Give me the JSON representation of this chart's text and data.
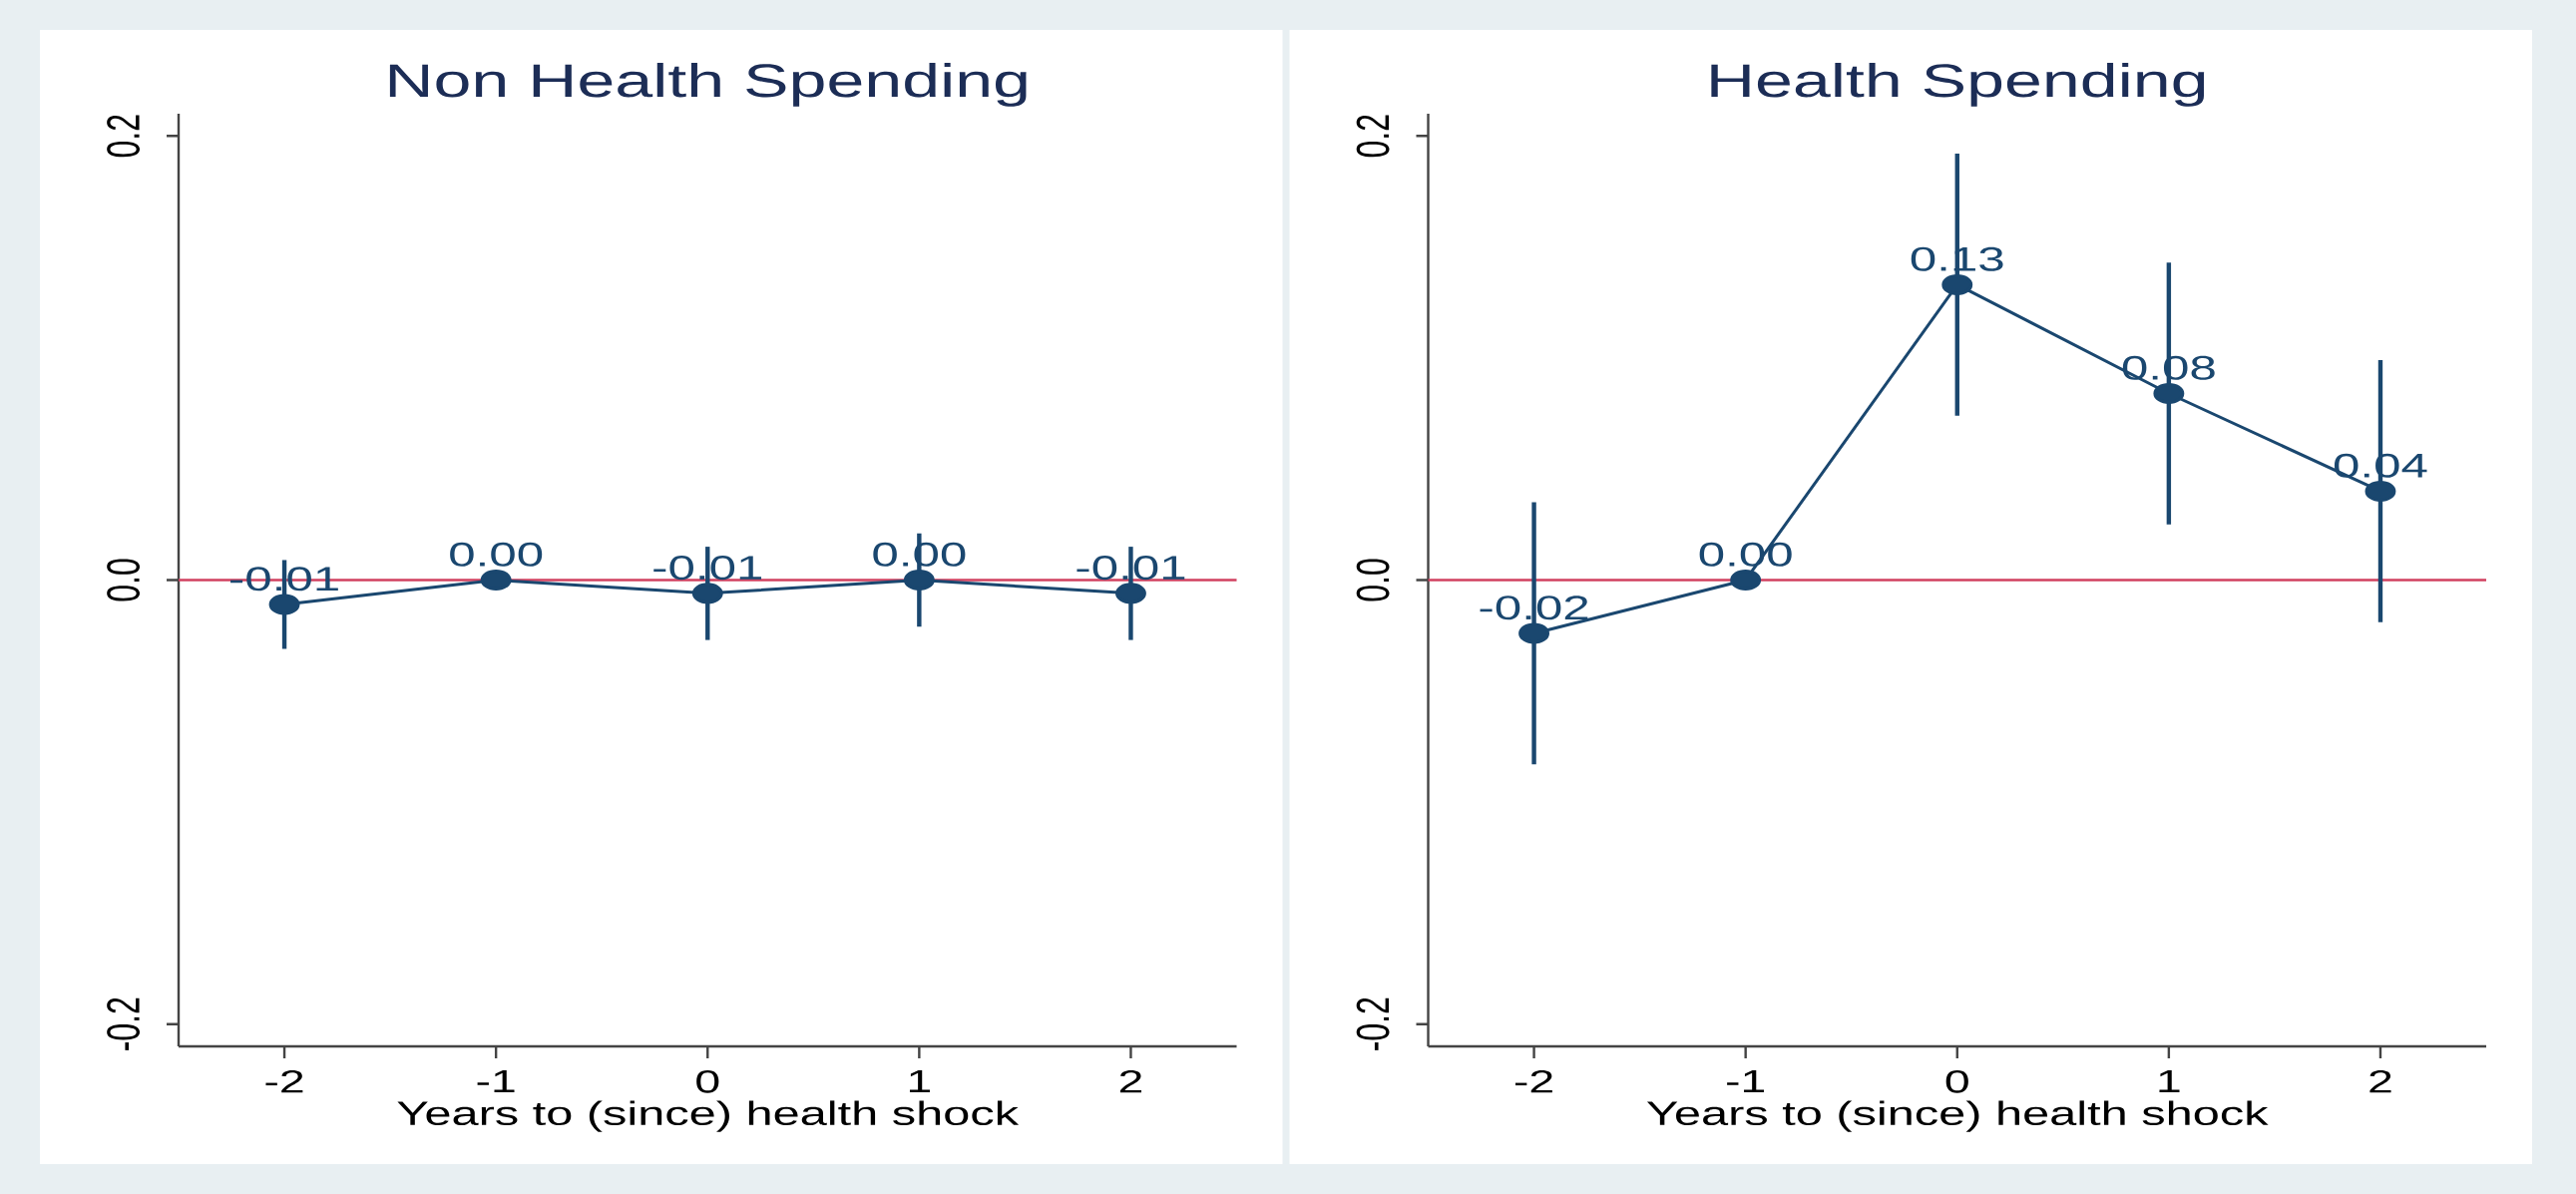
{
  "chart_data": [
    {
      "type": "line",
      "title": "Non Health Spending",
      "xlabel": "Years to (since) health shock",
      "x": [
        -2,
        -1,
        0,
        1,
        2
      ],
      "values": [
        -0.011,
        0,
        -0.006,
        0,
        -0.006
      ],
      "errors": [
        0.02,
        null,
        0.021,
        0.021,
        0.021
      ],
      "value_labels": [
        "-0.01",
        "0.00",
        "-0.01",
        "0.00",
        "-0.01"
      ],
      "color": "#1a476f",
      "marker": "circle",
      "line_style": "solid",
      "xlim": [
        -2.5,
        2.5
      ],
      "xticks": [
        -2,
        -1,
        0,
        1,
        2
      ],
      "ylim": [
        -0.21,
        0.21
      ],
      "yticks": [
        {
          "value": -0.2,
          "label": "-0.2"
        },
        {
          "value": 0,
          "label": "0.0"
        },
        {
          "value": 0.2,
          "label": "0.2"
        }
      ],
      "ref_lines": [
        {
          "axis": "y",
          "value": 0,
          "color": "#d0405f"
        }
      ]
    },
    {
      "type": "line",
      "title": "Health Spending",
      "xlabel": "Years to (since) health shock",
      "x": [
        -2,
        -1,
        0,
        1,
        2
      ],
      "values": [
        -0.024,
        0,
        0.133,
        0.084,
        0.04
      ],
      "errors": [
        0.059,
        null,
        0.059,
        0.059,
        0.059
      ],
      "value_labels": [
        "-0.02",
        "0.00",
        "0.13",
        "0.08",
        "0.04"
      ],
      "color": "#1a476f",
      "marker": "circle",
      "line_style": "solid",
      "xlim": [
        -2.5,
        2.5
      ],
      "xticks": [
        -2,
        -1,
        0,
        1,
        2
      ],
      "ylim": [
        -0.21,
        0.21
      ],
      "yticks": [
        {
          "value": -0.2,
          "label": "-0.2"
        },
        {
          "value": 0,
          "label": "0.0"
        },
        {
          "value": 0.2,
          "label": "0.2"
        }
      ],
      "ref_lines": [
        {
          "axis": "y",
          "value": 0,
          "color": "#d0405f"
        }
      ]
    }
  ]
}
